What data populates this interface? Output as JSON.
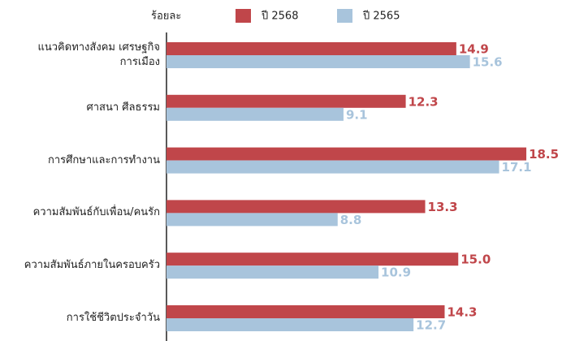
{
  "chart_data": {
    "type": "hbar",
    "unit_label": "ร้อยละ",
    "categories": [
      "แนวคิดทางสังคม เศรษฐกิจ การเมือง",
      "ศาสนา ศีลธรรม",
      "การศึกษาและการทำงาน",
      "ความสัมพันธ์กับเพื่อน/คนรัก",
      "ความสัมพันธ์ภายในครอบครัว",
      "การใช้ชีวิตประจำวัน"
    ],
    "series": [
      {
        "name": "ปี 2568",
        "color": "#c0464a",
        "values": [
          14.9,
          12.3,
          18.5,
          13.3,
          15.0,
          14.3
        ],
        "value_labels": [
          "14.9",
          "12.3",
          "18.5",
          "13.3",
          "15.0",
          "14.3"
        ]
      },
      {
        "name": "ปี 2565",
        "color": "#a8c4dc",
        "values": [
          15.6,
          9.1,
          17.1,
          8.8,
          10.9,
          12.7
        ],
        "value_labels": [
          "15.6",
          "9.1",
          "17.1",
          "8.8",
          "10.9",
          "12.7"
        ]
      }
    ],
    "xlim": [
      0,
      20
    ]
  }
}
